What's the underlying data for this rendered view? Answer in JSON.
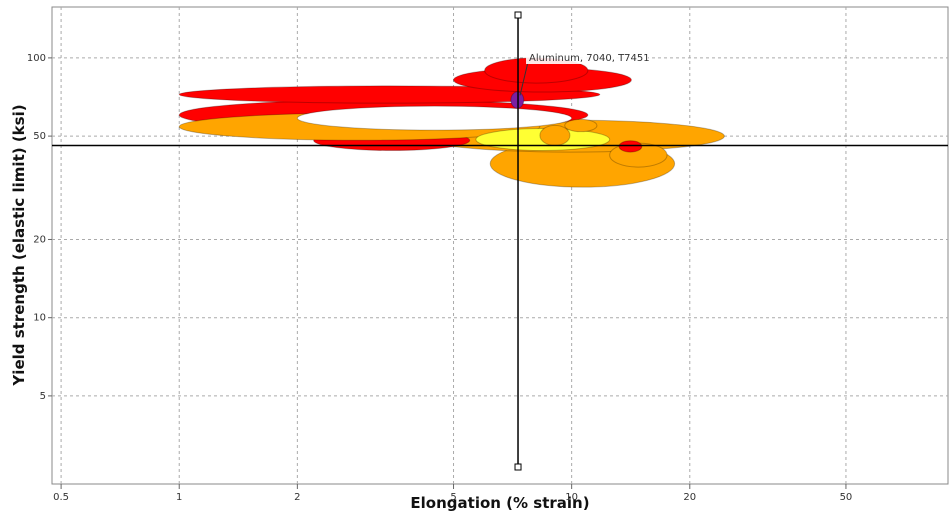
{
  "chart_data": {
    "type": "bubble-range",
    "x_label": "Elongation (% strain)",
    "y_label": "Yield strength (elastic limit) (ksi)",
    "log_x": true,
    "log_y": true,
    "grid": true,
    "xlim": [
      0.474,
      91
    ],
    "ylim": [
      2.29,
      157
    ],
    "xticks": [
      0.5,
      1,
      2,
      5,
      10,
      20,
      50
    ],
    "yticks": [
      5,
      10,
      20,
      50,
      100
    ],
    "crosshair": {
      "x": 7.3,
      "y": 46
    },
    "annotation": {
      "text": "Aluminum, 7040, T7451",
      "x": 7.3,
      "y": 68
    },
    "bubbles": [
      {
        "color": "#ffa500",
        "x": [
          6.2,
          18.3
        ],
        "y": [
          31.8,
          48.2
        ]
      },
      {
        "color": "#ffa500",
        "x": [
          4.0,
          24.5
        ],
        "y": [
          43.4,
          57.6
        ]
      },
      {
        "color": "#ff0000",
        "x": [
          2.2,
          5.5
        ],
        "y": [
          44,
          52.7
        ]
      },
      {
        "color": "#ff0000",
        "x": [
          1.0,
          11.0
        ],
        "y": [
          52.7,
          69
        ]
      },
      {
        "color": "#ffa500",
        "x": [
          1.0,
          8.3
        ],
        "y": [
          48.2,
          61.3
        ]
      },
      {
        "color": "#ff0000",
        "x": [
          1.0,
          11.8
        ],
        "y": [
          67,
          78
        ]
      },
      {
        "color": "#ff0000",
        "x": [
          5.0,
          14.2
        ],
        "y": [
          73.9,
          91.5
        ]
      },
      {
        "color": "#ff0000",
        "x": [
          6.0,
          11.0
        ],
        "y": [
          80,
          100
        ]
      },
      {
        "color": "#ffff33",
        "x": [
          5.7,
          12.5
        ],
        "y": [
          44,
          53.5
        ]
      },
      {
        "color": "#ffa500",
        "x": [
          8.3,
          9.9
        ],
        "y": [
          46,
          55
        ]
      },
      {
        "color": "#ffa500",
        "x": [
          9.6,
          11.6
        ],
        "y": [
          52,
          58
        ]
      },
      {
        "color": "#ffa500",
        "x": [
          12.5,
          17.5
        ],
        "y": [
          38,
          47
        ]
      },
      {
        "color": "#ff0000",
        "x": [
          13.2,
          15.1
        ],
        "y": [
          43.4,
          48
        ]
      },
      {
        "color": "#ffffff",
        "x": [
          2.0,
          10.0
        ],
        "y": [
          52.7,
          65.2
        ]
      },
      {
        "color": "#7b1fa2",
        "x": [
          7.0,
          7.55
        ],
        "y": [
          64,
          74
        ]
      }
    ]
  }
}
